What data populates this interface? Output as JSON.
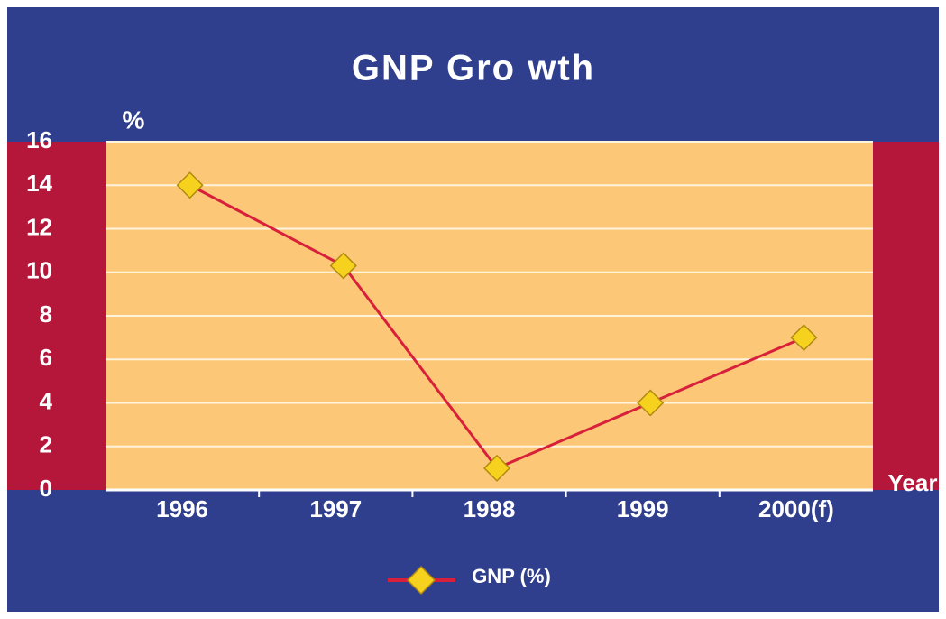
{
  "chart_data": {
    "type": "line",
    "title": "GNP Gro wth",
    "y_label": "%",
    "x_label": "Year",
    "categories": [
      "1996",
      "1997",
      "1998",
      "1999",
      "2000(f)"
    ],
    "series": [
      {
        "name": "GNP (%)",
        "color": "#d8203a",
        "values": [
          14,
          10.3,
          1,
          4,
          7
        ]
      }
    ],
    "ylim": [
      0,
      16
    ],
    "yticks": [
      0,
      2,
      4,
      6,
      8,
      10,
      12,
      14,
      16
    ],
    "grid": true,
    "legend": "bottom"
  }
}
